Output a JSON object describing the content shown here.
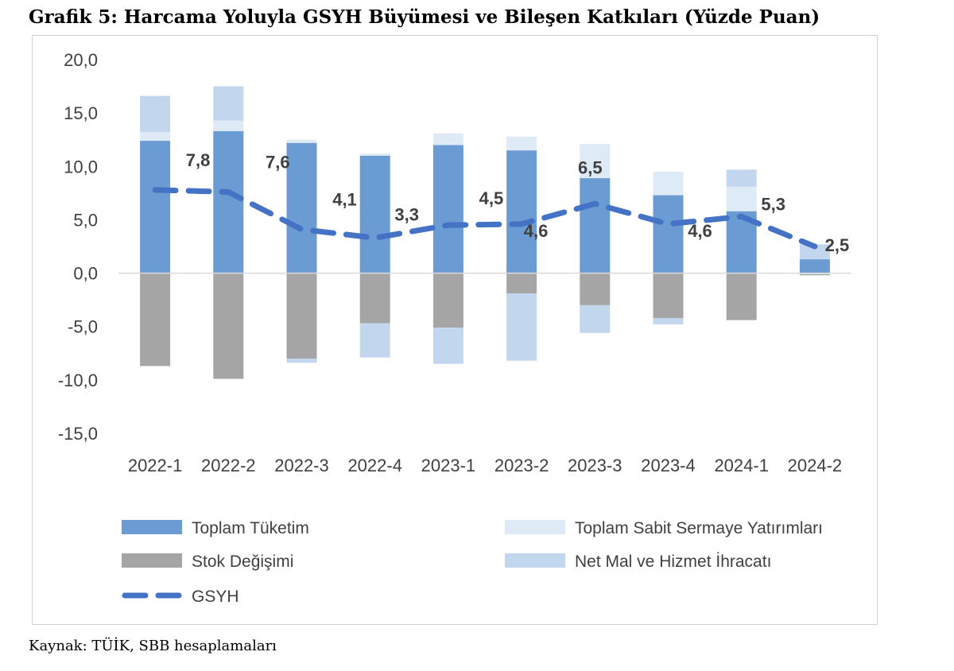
{
  "header": {
    "title": "Grafik 5: Harcama Yoluyla GSYH Büyümesi ve Bileşen Katkıları (Yüzde Puan)"
  },
  "footer": {
    "source": "Kaynak: TÜİK, SBB hesaplamaları"
  },
  "chart_data": {
    "type": "bar",
    "stacked": true,
    "categories": [
      "2022-1",
      "2022-2",
      "2022-3",
      "2022-4",
      "2023-1",
      "2023-2",
      "2023-3",
      "2023-4",
      "2024-1",
      "2024-2"
    ],
    "ylim": [
      -15,
      20
    ],
    "yticks": [
      -15,
      -10,
      -5,
      0,
      5,
      10,
      15,
      20
    ],
    "ytick_labels": [
      "-15,0",
      "-10,0",
      "-5,0",
      "0,0",
      "5,0",
      "10,0",
      "15,0",
      "20,0"
    ],
    "grid": false,
    "legend_position": "bottom",
    "series": [
      {
        "name": "Toplam Tüketim",
        "kind": "bar",
        "color": "#6a9bd3",
        "values": [
          12.4,
          13.3,
          12.2,
          11.0,
          12.0,
          11.5,
          8.9,
          7.3,
          5.8,
          1.3
        ]
      },
      {
        "name": "Toplam Sabit Sermaye Yatırımları",
        "kind": "bar",
        "color": "#deebf7",
        "values": [
          0.8,
          1.0,
          0.3,
          0.2,
          1.1,
          1.3,
          3.2,
          2.2,
          2.3,
          -0.1
        ]
      },
      {
        "name": "Stok Değişimi",
        "kind": "bar",
        "color": "#a5a5a5",
        "values": [
          -8.7,
          -9.9,
          -8.0,
          -4.7,
          -5.1,
          -1.9,
          -3.0,
          -4.2,
          -4.4,
          -0.1
        ]
      },
      {
        "name": "Net Mal ve Hizmet İhracatı",
        "kind": "bar",
        "color": "#c2d6ee",
        "values": [
          3.4,
          3.2,
          -0.4,
          -3.2,
          -3.4,
          -6.3,
          -2.6,
          -0.6,
          1.6,
          1.4
        ]
      },
      {
        "name": "GSYH",
        "kind": "line",
        "color": "#4472c4",
        "values": [
          7.8,
          7.6,
          4.1,
          3.3,
          4.5,
          4.6,
          6.5,
          4.6,
          5.3,
          2.5
        ]
      }
    ],
    "line_labels": [
      "7,8",
      "7,6",
      "4,1",
      "3,3",
      "4,5",
      "4,6",
      "6,5",
      "4,6",
      "5,3",
      "2,5"
    ]
  }
}
